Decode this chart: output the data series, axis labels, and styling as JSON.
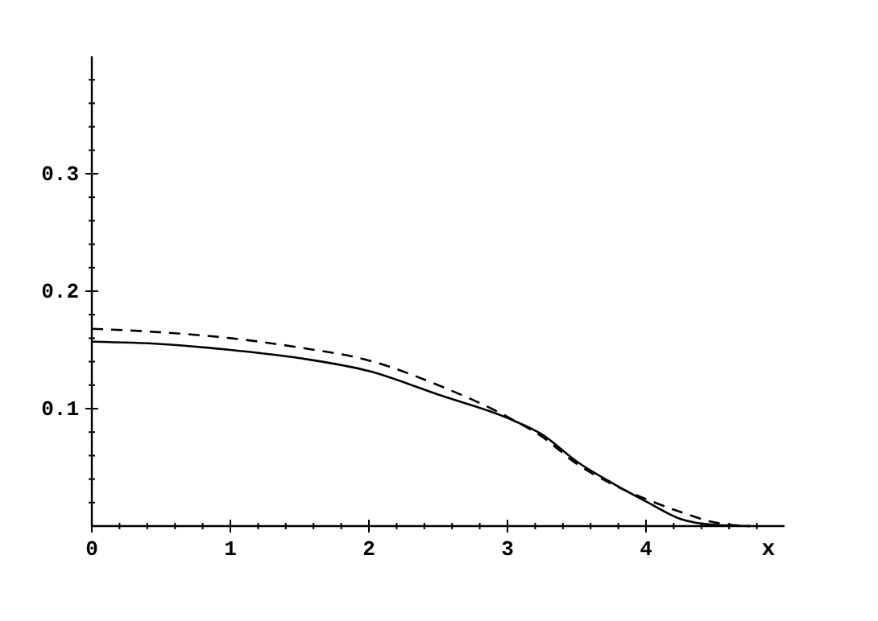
{
  "chart_data": {
    "type": "line",
    "xlabel": "x",
    "xlim": [
      0,
      5
    ],
    "ylim": [
      0,
      0.4
    ],
    "xticks": [
      0,
      {
        "value": 0.2,
        "label": null
      },
      {
        "value": 0.4,
        "label": null
      },
      {
        "value": 0.6,
        "label": null
      },
      {
        "value": 0.8,
        "label": null
      },
      1,
      {
        "value": 1.2,
        "label": null
      },
      {
        "value": 1.4,
        "label": null
      },
      {
        "value": 1.6,
        "label": null
      },
      {
        "value": 1.8,
        "label": null
      },
      2,
      {
        "value": 2.2,
        "label": null
      },
      {
        "value": 2.4,
        "label": null
      },
      {
        "value": 2.6,
        "label": null
      },
      {
        "value": 2.8,
        "label": null
      },
      3,
      {
        "value": 3.2,
        "label": null
      },
      {
        "value": 3.4,
        "label": null
      },
      {
        "value": 3.6,
        "label": null
      },
      {
        "value": 3.8,
        "label": null
      },
      4,
      {
        "value": 4.2,
        "label": null
      },
      {
        "value": 4.4,
        "label": null
      },
      {
        "value": 4.6,
        "label": null
      },
      {
        "value": 4.8,
        "label": null
      }
    ],
    "yticks": [
      {
        "value": 0.02,
        "label": null
      },
      {
        "value": 0.04,
        "label": null
      },
      {
        "value": 0.06,
        "label": null
      },
      {
        "value": 0.08,
        "label": null
      },
      0.1,
      {
        "value": 0.12,
        "label": null
      },
      {
        "value": 0.14,
        "label": null
      },
      {
        "value": 0.16,
        "label": null
      },
      {
        "value": 0.18,
        "label": null
      },
      0.2,
      {
        "value": 0.22,
        "label": null
      },
      {
        "value": 0.24,
        "label": null
      },
      {
        "value": 0.26,
        "label": null
      },
      {
        "value": 0.28,
        "label": null
      },
      0.3,
      {
        "value": 0.32,
        "label": null
      },
      {
        "value": 0.34,
        "label": null
      },
      {
        "value": 0.36,
        "label": null
      },
      {
        "value": 0.38,
        "label": null
      }
    ],
    "grid": false,
    "marker": "none",
    "x": [
      0,
      0.5,
      1,
      1.5,
      2,
      2.5,
      3,
      3.25,
      3.5,
      3.75,
      4,
      4.25,
      4.5,
      4.75
    ],
    "series": [
      {
        "color": "#000000",
        "line_style": "solid",
        "values": [
          0.157,
          0.155,
          0.15,
          0.143,
          0.132,
          0.112,
          0.092,
          0.078,
          0.055,
          0.037,
          0.021,
          0.006,
          0.001,
          0
        ]
      },
      {
        "color": "#000000",
        "line_style": "dashed",
        "values": [
          0.168,
          0.165,
          0.16,
          0.152,
          0.141,
          0.12,
          0.093,
          0.076,
          0.053,
          0.036,
          0.023,
          0.012,
          0.003,
          0
        ]
      }
    ]
  }
}
